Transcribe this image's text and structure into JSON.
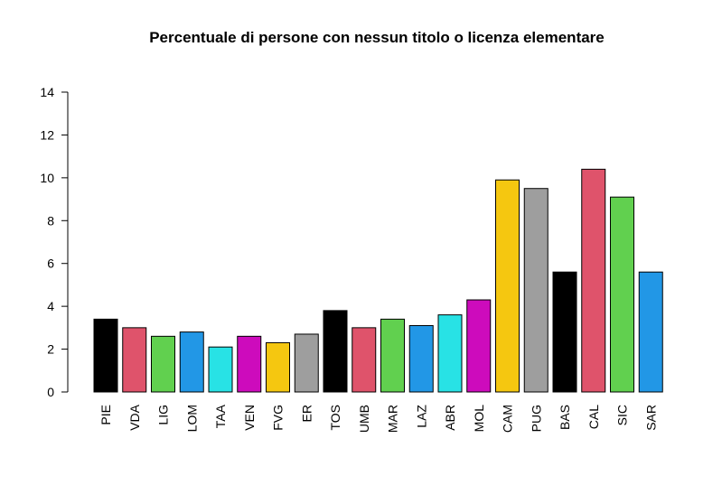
{
  "chart_data": {
    "type": "bar",
    "title": "Percentuale di persone con nessun titolo o licenza elementare",
    "xlabel": "",
    "ylabel": "",
    "ylim": [
      0,
      14
    ],
    "yticks": [
      0,
      2,
      4,
      6,
      8,
      10,
      12,
      14
    ],
    "grid": false,
    "legend": "none",
    "categories": [
      "PIE",
      "VDA",
      "LIG",
      "LOM",
      "TAA",
      "VEN",
      "FVG",
      "ER",
      "TOS",
      "UMB",
      "MAR",
      "LAZ",
      "ABR",
      "MOL",
      "CAM",
      "PUG",
      "BAS",
      "CAL",
      "SIC",
      "SAR"
    ],
    "values": [
      3.4,
      3.0,
      2.6,
      2.8,
      2.1,
      2.6,
      2.3,
      2.7,
      3.8,
      3.0,
      3.4,
      3.1,
      3.6,
      4.3,
      9.9,
      9.5,
      5.6,
      10.4,
      9.1,
      5.6
    ],
    "colors": [
      "#000000",
      "#DF536B",
      "#61D04F",
      "#2297E6",
      "#28E2E5",
      "#CD0BBC",
      "#F5C710",
      "#9E9E9E",
      "#000000",
      "#DF536B",
      "#61D04F",
      "#2297E6",
      "#28E2E5",
      "#CD0BBC",
      "#F5C710",
      "#9E9E9E",
      "#000000",
      "#DF536B",
      "#61D04F",
      "#2297E6"
    ]
  }
}
